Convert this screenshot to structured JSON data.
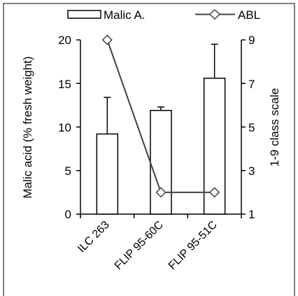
{
  "chart_data": {
    "type": "bar",
    "categories": [
      "ILC 263",
      "FLIP 95-60C",
      "FLIP 95-51C"
    ],
    "series": [
      {
        "name": "Malic A.",
        "type": "bar",
        "axis": "left",
        "values": [
          9.2,
          11.9,
          15.6
        ],
        "error_plus": [
          4.2,
          0.4,
          3.9
        ]
      },
      {
        "name": "ABL",
        "type": "line",
        "axis": "right",
        "marker": "diamond",
        "values": [
          9,
          2,
          2
        ]
      }
    ],
    "ylabel": "Malic acid (% fresh weight)",
    "ylim": [
      0,
      20
    ],
    "yticks": [
      "0",
      "5",
      "10",
      "15",
      "20"
    ],
    "y2label": "1-9 class scale",
    "y2lim": [
      1,
      9
    ],
    "y2ticks": [
      "1",
      "3",
      "5",
      "7",
      "9"
    ],
    "legend_position": "top",
    "grid": false,
    "colors": {
      "bar_fill": "#ffffff",
      "stroke": "#000000",
      "line": "#404040"
    }
  }
}
